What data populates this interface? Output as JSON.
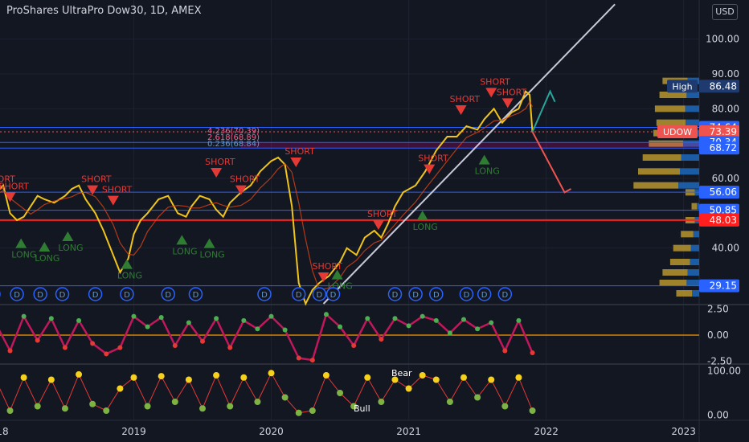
{
  "header": {
    "title": "ProShares UltraPro Dow30, 1D, AMEX",
    "currency_button": "USD"
  },
  "colors": {
    "bg": "#131722",
    "grid": "#1e2230",
    "axis_text": "#d1d4dc",
    "price": "#f0c419",
    "short": "#e53935",
    "long": "#2e7d32",
    "hline": "#2962ff",
    "redline": "#ff1f1f",
    "vp_gold": "#b8962e",
    "vp_blue": "#1e64b4",
    "trend": "#c8c8d8"
  },
  "chart_data": [
    {
      "type": "line",
      "panel": "price",
      "title": "ProShares UltraPro Dow30, 1D, AMEX",
      "xlabel": "",
      "ylabel": "",
      "x_ticks": [
        "2018",
        "2019",
        "2020",
        "2021",
        "2022",
        "2023"
      ],
      "y_ticks": [
        100.0,
        90.0,
        80.0,
        60.0,
        40.0
      ],
      "ylim": [
        24,
        108
      ],
      "series": [
        {
          "x": [
            2017.98,
            2018.05,
            2018.1,
            2018.15,
            2018.2,
            2018.25,
            2018.3,
            2018.35,
            2018.42,
            2018.5,
            2018.55,
            2018.6,
            2018.65,
            2018.72,
            2018.78,
            2018.85,
            2018.9,
            2018.96,
            2019.0,
            2019.05,
            2019.1,
            2019.18,
            2019.25,
            2019.32,
            2019.38,
            2019.42,
            2019.48,
            2019.55,
            2019.6,
            2019.65,
            2019.7,
            2019.78,
            2019.85,
            2019.92,
            2020.0,
            2020.05,
            2020.1,
            2020.15,
            2020.2,
            2020.25,
            2020.3,
            2020.35,
            2020.42,
            2020.5,
            2020.55,
            2020.62,
            2020.68,
            2020.75,
            2020.8,
            2020.85,
            2020.9,
            2020.96,
            2021.05,
            2021.12,
            2021.2,
            2021.28,
            2021.35,
            2021.42,
            2021.5,
            2021.55,
            2021.62,
            2021.68,
            2021.75,
            2021.8,
            2021.85,
            2021.88,
            2021.9
          ],
          "values": [
            55,
            58,
            50,
            48,
            49,
            52,
            55,
            54,
            53,
            55,
            57,
            58,
            54,
            50,
            45,
            38,
            33,
            37,
            44,
            48,
            50,
            54,
            55,
            50,
            49,
            52,
            55,
            54,
            51,
            49,
            53,
            56,
            58,
            62,
            65,
            66,
            64,
            52,
            30,
            24,
            28,
            30,
            32,
            36,
            40,
            38,
            43,
            45,
            43,
            47,
            52,
            56,
            58,
            62,
            68,
            72,
            72,
            75,
            74,
            77,
            80,
            76,
            79,
            80,
            85,
            84,
            73.39
          ]
        }
      ]
    },
    {
      "type": "line",
      "panel": "oscillator",
      "y_ticks": [
        2.5,
        0.0,
        -2.5
      ],
      "ylim": [
        -2.7,
        2.7
      ],
      "series": [
        {
          "x": [
            2017.98,
            2018.1,
            2018.2,
            2018.3,
            2018.4,
            2018.5,
            2018.6,
            2018.7,
            2018.8,
            2018.9,
            2019.0,
            2019.1,
            2019.2,
            2019.3,
            2019.4,
            2019.5,
            2019.6,
            2019.7,
            2019.8,
            2019.9,
            2020.0,
            2020.1,
            2020.2,
            2020.3,
            2020.4,
            2020.5,
            2020.6,
            2020.7,
            2020.8,
            2020.9,
            2021.0,
            2021.1,
            2021.2,
            2021.3,
            2021.4,
            2021.5,
            2021.6,
            2021.7,
            2021.8,
            2021.9
          ],
          "values": [
            1.5,
            -1.5,
            1.8,
            -0.5,
            1.6,
            -1.2,
            1.4,
            -0.8,
            -1.8,
            -1.2,
            1.8,
            0.8,
            1.7,
            -1.0,
            1.2,
            -0.6,
            1.6,
            -1.2,
            1.4,
            0.6,
            1.8,
            0.5,
            -2.2,
            -2.4,
            2.0,
            0.8,
            -1.0,
            1.6,
            -0.4,
            1.6,
            0.9,
            1.8,
            1.4,
            0.2,
            1.5,
            0.6,
            1.2,
            -1.5,
            1.4,
            -1.7
          ]
        }
      ]
    },
    {
      "type": "line",
      "panel": "sentiment",
      "y_ticks": [
        100.0,
        0.0
      ],
      "ylim": [
        -10,
        110
      ],
      "series": [
        {
          "x": [
            2017.98,
            2018.1,
            2018.2,
            2018.3,
            2018.4,
            2018.5,
            2018.6,
            2018.7,
            2018.8,
            2018.9,
            2019.0,
            2019.1,
            2019.2,
            2019.3,
            2019.4,
            2019.5,
            2019.6,
            2019.7,
            2019.8,
            2019.9,
            2020.0,
            2020.1,
            2020.2,
            2020.3,
            2020.4,
            2020.5,
            2020.6,
            2020.7,
            2020.8,
            2020.9,
            2021.0,
            2021.1,
            2021.2,
            2021.3,
            2021.4,
            2021.5,
            2021.6,
            2021.7,
            2021.8,
            2021.9
          ],
          "values": [
            90,
            10,
            85,
            20,
            80,
            15,
            92,
            25,
            10,
            60,
            85,
            20,
            88,
            30,
            80,
            15,
            90,
            20,
            85,
            30,
            95,
            40,
            5,
            10,
            90,
            50,
            20,
            85,
            30,
            80,
            60,
            90,
            80,
            30,
            85,
            40,
            80,
            20,
            85,
            10
          ]
        }
      ]
    }
  ],
  "price_labels": [
    {
      "label": "High",
      "value": "86.48",
      "price": 86.48,
      "bg": "#1e3a6e"
    },
    {
      "label": "",
      "value": "74.64",
      "price": 74.64,
      "bg": "#2962ff"
    },
    {
      "label": "UDOW",
      "value": "73.39",
      "price": 73.39,
      "bg": "#ef5350"
    },
    {
      "label": "",
      "value": "70.34",
      "price": 70.34,
      "bg": "#2962ff"
    },
    {
      "label": "",
      "value": "68.72",
      "price": 68.72,
      "bg": "#2962ff"
    },
    {
      "label": "",
      "value": "56.06",
      "price": 56.06,
      "bg": "#2962ff"
    },
    {
      "label": "",
      "value": "50.85",
      "price": 50.85,
      "bg": "#2962ff"
    },
    {
      "label": "",
      "value": "48.03",
      "price": 48.03,
      "bg": "#ff1f1f"
    },
    {
      "label": "",
      "value": "29.15",
      "price": 29.15,
      "bg": "#2962ff"
    }
  ],
  "horizontal_lines": [
    {
      "price": 74.64,
      "color": "#2962ff"
    },
    {
      "price": 70.34,
      "color": "#2962ff"
    },
    {
      "price": 68.72,
      "color": "#2962ff"
    },
    {
      "price": 56.06,
      "color": "#2962ff"
    },
    {
      "price": 50.85,
      "color": "#2962ff"
    },
    {
      "price": 48.03,
      "color": "#ff1f1f"
    },
    {
      "price": 29.15,
      "color": "#2962ff"
    }
  ],
  "fib_labels": [
    "4.236(70.39)",
    "2.618(68.89)",
    "0.236(68.84)"
  ],
  "short_signals": [
    {
      "x": 2018.0,
      "price": 58,
      "text": "SHORT"
    },
    {
      "x": 2018.1,
      "price": 56,
      "text": "SHORT"
    },
    {
      "x": 2018.7,
      "price": 58,
      "text": "SHORT"
    },
    {
      "x": 2018.85,
      "price": 55,
      "text": "SHORT"
    },
    {
      "x": 2019.6,
      "price": 63,
      "text": "SHORT"
    },
    {
      "x": 2019.78,
      "price": 58,
      "text": "SHORT"
    },
    {
      "x": 2020.18,
      "price": 66,
      "text": "SHORT"
    },
    {
      "x": 2020.38,
      "price": 33,
      "text": "SHORT"
    },
    {
      "x": 2020.78,
      "price": 48,
      "text": "SHORT"
    },
    {
      "x": 2021.15,
      "price": 64,
      "text": "SHORT"
    },
    {
      "x": 2021.38,
      "price": 81,
      "text": "SHORT"
    },
    {
      "x": 2021.6,
      "price": 86,
      "text": "SHORT"
    },
    {
      "x": 2021.72,
      "price": 83,
      "text": "SHORT"
    }
  ],
  "long_signals": [
    {
      "x": 2018.18,
      "price": 40,
      "text": "LONG"
    },
    {
      "x": 2018.35,
      "price": 39,
      "text": "LONG"
    },
    {
      "x": 2018.52,
      "price": 42,
      "text": "LONG"
    },
    {
      "x": 2018.95,
      "price": 34,
      "text": "LONG"
    },
    {
      "x": 2019.35,
      "price": 41,
      "text": "LONG"
    },
    {
      "x": 2019.55,
      "price": 40,
      "text": "LONG"
    },
    {
      "x": 2020.48,
      "price": 31,
      "text": "LONG"
    },
    {
      "x": 2021.1,
      "price": 48,
      "text": "LONG"
    },
    {
      "x": 2021.55,
      "price": 64,
      "text": "LONG"
    }
  ],
  "annotation_labels": [
    "SHORT",
    "LONG",
    "D",
    "Bull",
    "Bear"
  ]
}
